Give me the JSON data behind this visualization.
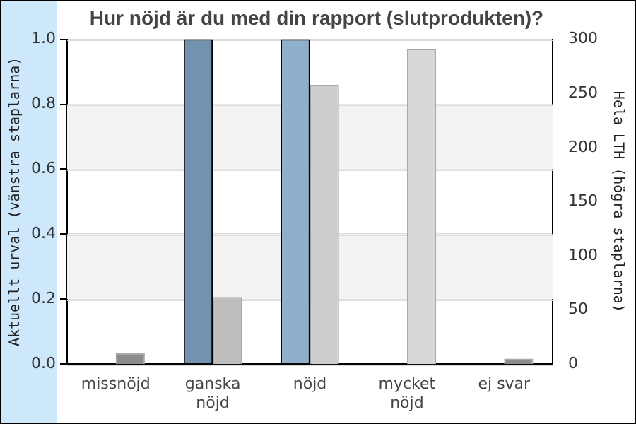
{
  "chart_data": {
    "type": "bar",
    "title": "Hur nöjd är du med din rapport (slutprodukten)?",
    "ylabel": "Aktuellt urval (vänstra staplarna)",
    "y2label": "Hela LTH (högra staplarna)",
    "categories": [
      "missnöjd",
      "ganska nöjd",
      "nöjd",
      "mycket nöjd",
      "ej svar"
    ],
    "series": [
      {
        "colors": [
          "#7293b0",
          "#7293b0",
          "#8fb0cc",
          "#8fb0cc",
          "#8fb0cc"
        ],
        "values": [
          0,
          1,
          1,
          0,
          0
        ]
      },
      {
        "colors": [
          "#8c8c8c",
          "#bebebe",
          "#cccccc",
          "#d8d8d8",
          "#8c8c8c"
        ],
        "values": [
          10,
          62,
          258,
          291,
          5
        ],
        "axis": "y2"
      }
    ],
    "ylim": [
      0,
      1
    ],
    "yticks": [
      {
        "value": 0,
        "label": "0.0"
      },
      {
        "value": 0.2,
        "label": "0.2"
      },
      {
        "value": 0.4,
        "label": "0.4"
      },
      {
        "value": 0.6,
        "label": "0.6"
      },
      {
        "value": 0.8,
        "label": "0.8"
      },
      {
        "value": 1,
        "label": "1.0"
      }
    ],
    "y2lim": [
      0,
      300
    ],
    "y2ticks": [
      0,
      50,
      100,
      150,
      200,
      250,
      300
    ],
    "bands": [
      {
        "axis": "y",
        "from": 0.2,
        "to": 0.4,
        "color": "#f3f3f3"
      },
      {
        "axis": "y",
        "from": 0.6,
        "to": 0.8,
        "color": "#f3f3f3"
      }
    ],
    "grid": "y",
    "legend": false
  }
}
